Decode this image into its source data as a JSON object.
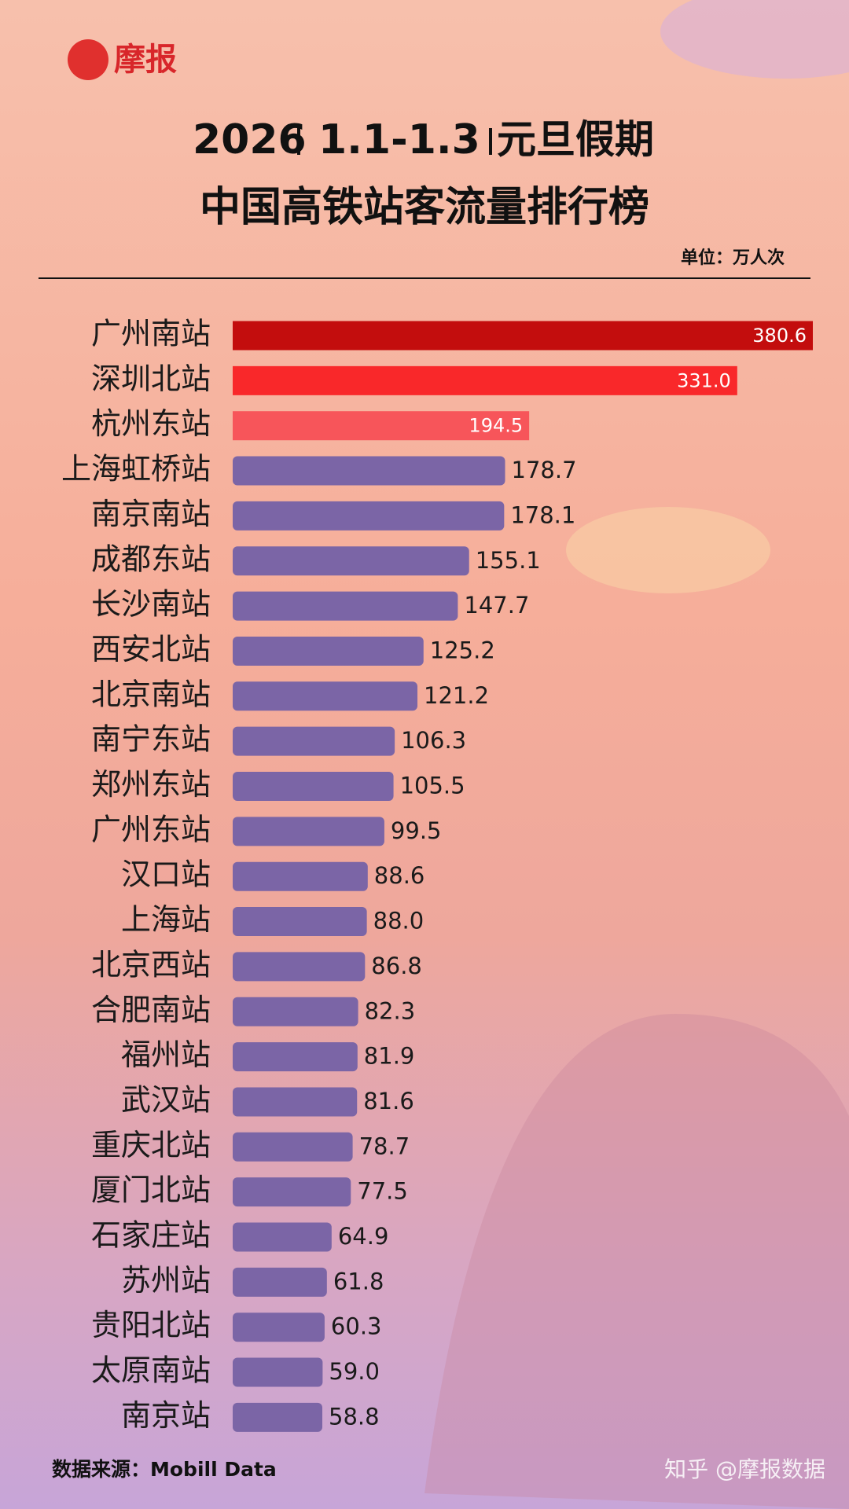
{
  "header": {
    "logo": "摩报"
  },
  "chart_data": {
    "type": "bar",
    "orientation": "horizontal",
    "title_parts": [
      "2026",
      "1.1-1.3",
      "元旦假期"
    ],
    "subtitle": "中国高铁站客流量排行榜",
    "unit_label": "单位：万人次",
    "categories": [
      "广州南站",
      "深圳北站",
      "杭州东站",
      "上海虹桥站",
      "南京南站",
      "成都东站",
      "长沙南站",
      "西安北站",
      "北京南站",
      "南宁东站",
      "郑州东站",
      "广州东站",
      "汉口站",
      "上海站",
      "北京西站",
      "合肥南站",
      "福州站",
      "武汉站",
      "重庆北站",
      "厦门北站",
      "石家庄站",
      "苏州站",
      "贵阳北站",
      "太原南站",
      "南京站"
    ],
    "values": [
      380.6,
      331.0,
      194.5,
      178.7,
      178.1,
      155.1,
      147.7,
      125.2,
      121.2,
      106.3,
      105.5,
      99.5,
      88.6,
      88.0,
      86.8,
      82.3,
      81.9,
      81.6,
      78.7,
      77.5,
      64.9,
      61.8,
      60.3,
      59.0,
      58.8
    ],
    "value_labels": [
      "380.6",
      "331.0",
      "194.5",
      "178.7",
      "178.1",
      "155.1",
      "147.7",
      "125.2",
      "121.2",
      "106.3",
      "105.5",
      "99.5",
      "88.6",
      "88.0",
      "86.8",
      "82.3",
      "81.9",
      "81.6",
      "78.7",
      "77.5",
      "64.9",
      "61.8",
      "60.3",
      "59.0",
      "58.8"
    ],
    "colors": [
      "#c30d0d",
      "#f9282a",
      "#f7555a",
      "#7b65a6",
      "#7b65a6",
      "#7b65a6",
      "#7b65a6",
      "#7b65a6",
      "#7b65a6",
      "#7b65a6",
      "#7b65a6",
      "#7b65a6",
      "#7b65a6",
      "#7b65a6",
      "#7b65a6",
      "#7b65a6",
      "#7b65a6",
      "#7b65a6",
      "#7b65a6",
      "#7b65a6",
      "#7b65a6",
      "#7b65a6",
      "#7b65a6",
      "#7b65a6",
      "#7b65a6"
    ],
    "source": "数据来源：Mobill Data"
  },
  "watermark": "知乎 @摩报数据"
}
